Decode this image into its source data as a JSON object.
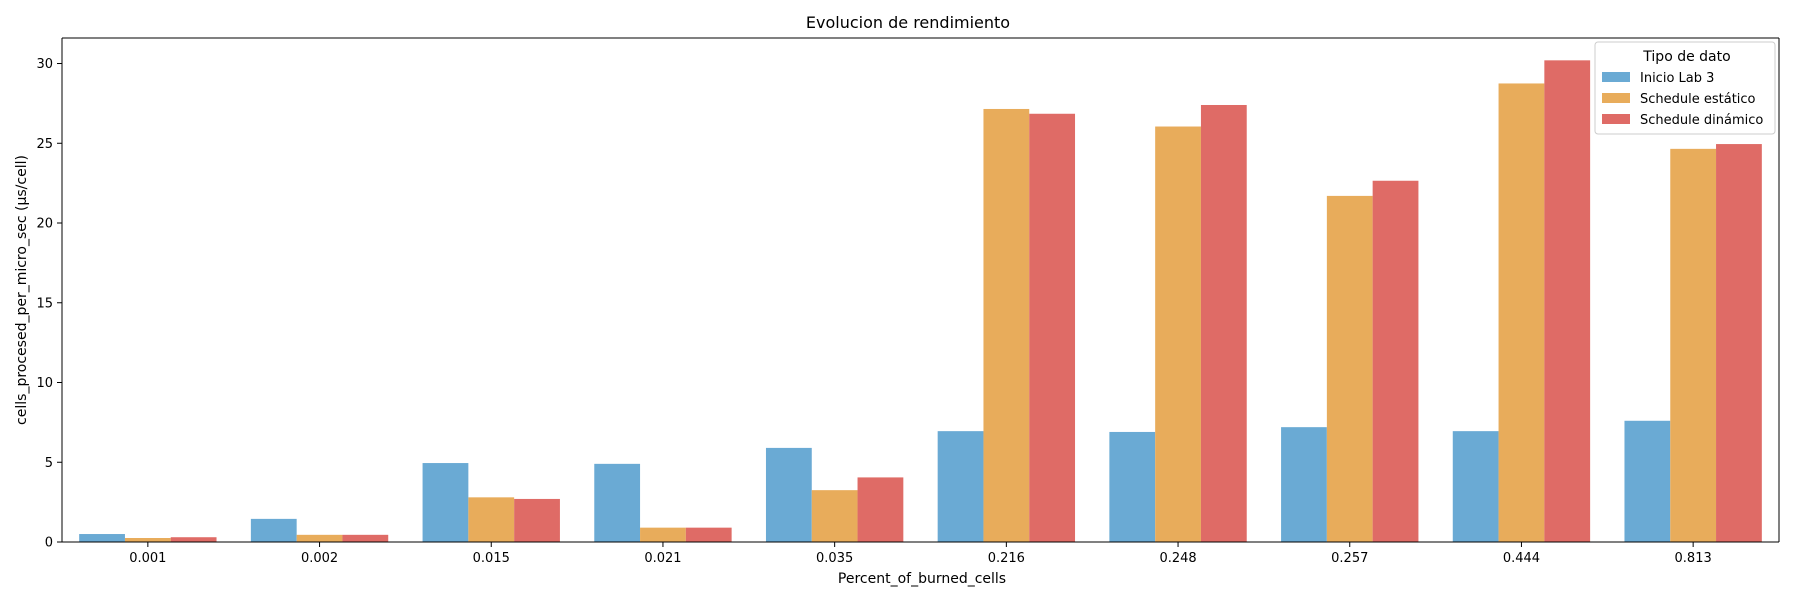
{
  "chart_data": {
    "type": "bar",
    "title": "Evolucion de rendimiento",
    "xlabel": "Percent_of_burned_cells",
    "ylabel": "cells_procesed_per_micro_sec (µs/cell)",
    "categories": [
      "0.001",
      "0.002",
      "0.015",
      "0.021",
      "0.035",
      "0.216",
      "0.248",
      "0.257",
      "0.444",
      "0.813"
    ],
    "ylim": [
      0,
      31.6
    ],
    "yticks": [
      0,
      5,
      10,
      15,
      20,
      25,
      30
    ],
    "grid": false,
    "legend": {
      "title": "Tipo de dato",
      "placement": "top-right"
    },
    "series": [
      {
        "name": "Inicio Lab 3",
        "color": "#6aaad4",
        "values": [
          0.5,
          1.45,
          4.95,
          4.9,
          5.9,
          6.95,
          6.9,
          7.2,
          6.95,
          7.6
        ]
      },
      {
        "name": "Schedule estático",
        "color": "#e8ac5b",
        "values": [
          0.25,
          0.45,
          2.8,
          0.9,
          3.25,
          27.15,
          26.05,
          21.7,
          28.75,
          24.65
        ]
      },
      {
        "name": "Schedule dinámico",
        "color": "#df6b66",
        "values": [
          0.3,
          0.45,
          2.7,
          0.9,
          4.05,
          26.85,
          27.4,
          22.65,
          30.2,
          24.95
        ]
      }
    ]
  }
}
